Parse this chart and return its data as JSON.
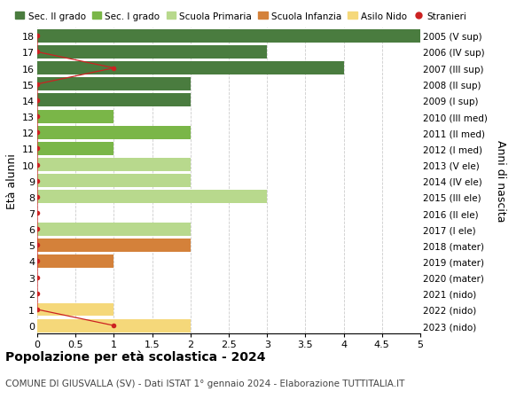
{
  "ages": [
    18,
    17,
    16,
    15,
    14,
    13,
    12,
    11,
    10,
    9,
    8,
    7,
    6,
    5,
    4,
    3,
    2,
    1,
    0
  ],
  "years": [
    "2005 (V sup)",
    "2006 (IV sup)",
    "2007 (III sup)",
    "2008 (II sup)",
    "2009 (I sup)",
    "2010 (III med)",
    "2011 (II med)",
    "2012 (I med)",
    "2013 (V ele)",
    "2014 (IV ele)",
    "2015 (III ele)",
    "2016 (II ele)",
    "2017 (I ele)",
    "2018 (mater)",
    "2019 (mater)",
    "2020 (mater)",
    "2021 (nido)",
    "2022 (nido)",
    "2023 (nido)"
  ],
  "bar_values": [
    5,
    3,
    4,
    2,
    2,
    1,
    2,
    1,
    2,
    2,
    3,
    0,
    2,
    2,
    1,
    0,
    0,
    1,
    2
  ],
  "bar_colors": [
    "#4a7c3f",
    "#4a7c3f",
    "#4a7c3f",
    "#4a7c3f",
    "#4a7c3f",
    "#7ab648",
    "#7ab648",
    "#7ab648",
    "#b8d98d",
    "#b8d98d",
    "#b8d98d",
    "#b8d98d",
    "#b8d98d",
    "#d4813a",
    "#d4813a",
    "#d4813a",
    "#f5d87a",
    "#f5d87a",
    "#f5d87a"
  ],
  "stranieri_all_ages": [
    18,
    17,
    16,
    15,
    14,
    13,
    12,
    11,
    10,
    9,
    8,
    7,
    6,
    5,
    4,
    3,
    2,
    1,
    0
  ],
  "stranieri_all_values": [
    0,
    0,
    1,
    0,
    0,
    0,
    0,
    0,
    0,
    0,
    0,
    0,
    0,
    0,
    0,
    0,
    0,
    0,
    1
  ],
  "color_sec2": "#4a7c3f",
  "color_sec1": "#7ab648",
  "color_primaria": "#b8d98d",
  "color_infanzia": "#d4813a",
  "color_nido": "#f5d87a",
  "color_stranieri": "#cc2222",
  "title": "Popolazione per età scolastica - 2024",
  "subtitle": "COMUNE DI GIUSVALLA (SV) - Dati ISTAT 1° gennaio 2024 - Elaborazione TUTTITALIA.IT",
  "ylabel_left": "Età alunni",
  "ylabel_right": "Anni di nascita",
  "xlim": [
    0,
    5.0
  ],
  "xticks": [
    0,
    0.5,
    1.0,
    1.5,
    2.0,
    2.5,
    3.0,
    3.5,
    4.0,
    4.5,
    5.0
  ],
  "background_color": "#ffffff",
  "grid_color": "#cccccc",
  "bar_height": 0.82
}
